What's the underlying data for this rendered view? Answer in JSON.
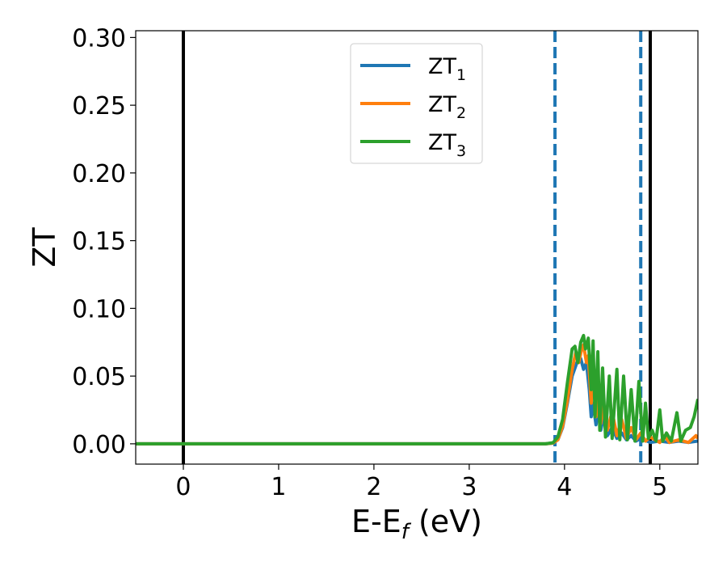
{
  "chart_data": {
    "type": "line",
    "xlabel": "E-E",
    "xlabel_sub": "f",
    "xlabel_unit": " (eV)",
    "ylabel": "ZT",
    "xlim": [
      -0.5,
      5.4
    ],
    "ylim": [
      -0.015,
      0.305
    ],
    "xticks": [
      0,
      1,
      2,
      3,
      4,
      5
    ],
    "xtick_labels": [
      "0",
      "1",
      "2",
      "3",
      "4",
      "5"
    ],
    "yticks": [
      0.0,
      0.05,
      0.1,
      0.15,
      0.2,
      0.25,
      0.3
    ],
    "ytick_labels": [
      "0.00",
      "0.05",
      "0.10",
      "0.15",
      "0.20",
      "0.25",
      "0.30"
    ],
    "grid": false,
    "legend_position": "upper-center",
    "vertical_lines": [
      {
        "x": 0.0,
        "style": "solid",
        "color": "#000000"
      },
      {
        "x": 4.9,
        "style": "solid",
        "color": "#000000"
      },
      {
        "x": 3.9,
        "style": "dashed",
        "color": "#1f77b4"
      },
      {
        "x": 4.8,
        "style": "dashed",
        "color": "#1f77b4"
      }
    ],
    "series": [
      {
        "name": "ZT",
        "subscript": "1",
        "color": "#1f77b4",
        "points": [
          [
            -0.5,
            0
          ],
          [
            3.8,
            0
          ],
          [
            3.88,
            0.0005
          ],
          [
            3.93,
            0.003
          ],
          [
            3.98,
            0.012
          ],
          [
            4.03,
            0.03
          ],
          [
            4.08,
            0.05
          ],
          [
            4.13,
            0.06
          ],
          [
            4.17,
            0.063
          ],
          [
            4.2,
            0.055
          ],
          [
            4.23,
            0.06
          ],
          [
            4.26,
            0.04
          ],
          [
            4.28,
            0.02
          ],
          [
            4.3,
            0.03
          ],
          [
            4.33,
            0.014
          ],
          [
            4.36,
            0.025
          ],
          [
            4.38,
            0.01
          ],
          [
            4.41,
            0.02
          ],
          [
            4.45,
            0.006
          ],
          [
            4.5,
            0.012
          ],
          [
            4.55,
            0.004
          ],
          [
            4.6,
            0.008
          ],
          [
            4.65,
            0.003
          ],
          [
            4.7,
            0.006
          ],
          [
            4.75,
            0.002
          ],
          [
            4.8,
            0.004
          ],
          [
            4.9,
            0.001
          ],
          [
            5.0,
            0.002
          ],
          [
            5.1,
            0.001
          ],
          [
            5.2,
            0.002
          ],
          [
            5.3,
            0.001
          ],
          [
            5.4,
            0.002
          ]
        ]
      },
      {
        "name": "ZT",
        "subscript": "2",
        "color": "#ff7f0e",
        "points": [
          [
            -0.5,
            0
          ],
          [
            3.8,
            0
          ],
          [
            3.88,
            0.0005
          ],
          [
            3.93,
            0.003
          ],
          [
            3.98,
            0.013
          ],
          [
            4.03,
            0.032
          ],
          [
            4.08,
            0.055
          ],
          [
            4.12,
            0.068
          ],
          [
            4.15,
            0.06
          ],
          [
            4.18,
            0.07
          ],
          [
            4.2,
            0.073
          ],
          [
            4.23,
            0.06
          ],
          [
            4.25,
            0.065
          ],
          [
            4.28,
            0.03
          ],
          [
            4.3,
            0.055
          ],
          [
            4.33,
            0.02
          ],
          [
            4.36,
            0.04
          ],
          [
            4.38,
            0.015
          ],
          [
            4.41,
            0.03
          ],
          [
            4.45,
            0.01
          ],
          [
            4.5,
            0.024
          ],
          [
            4.55,
            0.006
          ],
          [
            4.6,
            0.018
          ],
          [
            4.65,
            0.004
          ],
          [
            4.7,
            0.012
          ],
          [
            4.75,
            0.003
          ],
          [
            4.8,
            0.008
          ],
          [
            4.85,
            0.002
          ],
          [
            4.9,
            0.005
          ],
          [
            5.0,
            0.001
          ],
          [
            5.05,
            0.006
          ],
          [
            5.1,
            0.001
          ],
          [
            5.2,
            0.003
          ],
          [
            5.3,
            0.001
          ],
          [
            5.38,
            0.006
          ],
          [
            5.4,
            0.004
          ]
        ]
      },
      {
        "name": "ZT",
        "subscript": "3",
        "color": "#2ca02c",
        "points": [
          [
            -0.5,
            0
          ],
          [
            3.8,
            0
          ],
          [
            3.88,
            0.0008
          ],
          [
            3.93,
            0.005
          ],
          [
            3.98,
            0.018
          ],
          [
            4.03,
            0.045
          ],
          [
            4.08,
            0.07
          ],
          [
            4.11,
            0.072
          ],
          [
            4.14,
            0.06
          ],
          [
            4.17,
            0.075
          ],
          [
            4.2,
            0.08
          ],
          [
            4.22,
            0.07
          ],
          [
            4.25,
            0.078
          ],
          [
            4.28,
            0.04
          ],
          [
            4.3,
            0.076
          ],
          [
            4.32,
            0.02
          ],
          [
            4.35,
            0.068
          ],
          [
            4.37,
            0.01
          ],
          [
            4.4,
            0.056
          ],
          [
            4.43,
            0.005
          ],
          [
            4.47,
            0.05
          ],
          [
            4.5,
            0.004
          ],
          [
            4.55,
            0.055
          ],
          [
            4.58,
            0.003
          ],
          [
            4.62,
            0.05
          ],
          [
            4.66,
            0.003
          ],
          [
            4.7,
            0.04
          ],
          [
            4.74,
            0.002
          ],
          [
            4.78,
            0.046
          ],
          [
            4.82,
            0.002
          ],
          [
            4.85,
            0.03
          ],
          [
            4.88,
            0.004
          ],
          [
            4.92,
            0.01
          ],
          [
            4.96,
            0.002
          ],
          [
            5.0,
            0.025
          ],
          [
            5.03,
            0.002
          ],
          [
            5.07,
            0.008
          ],
          [
            5.12,
            0.002
          ],
          [
            5.18,
            0.023
          ],
          [
            5.22,
            0.002
          ],
          [
            5.27,
            0.01
          ],
          [
            5.32,
            0.012
          ],
          [
            5.36,
            0.02
          ],
          [
            5.4,
            0.033
          ]
        ]
      }
    ]
  }
}
